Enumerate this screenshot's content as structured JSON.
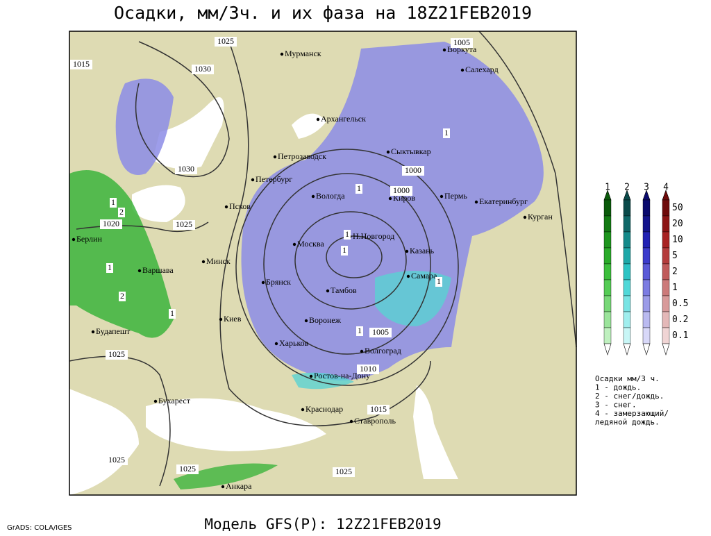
{
  "title": "Осадки, мм/3ч. и их фаза на 18Z21FEB2019",
  "map": {
    "cities": [
      "Мурманск",
      "Воркута",
      "Салехард",
      "Архангельск",
      "Сыктывкар",
      "Петрозаводск",
      "Петербург",
      "Вологда",
      "Киров",
      "Пермь",
      "Екатеринбург",
      "Курган",
      "Псков",
      "Берлин",
      "Н.Новгород",
      "Москва",
      "Казань",
      "Варшава",
      "Минск",
      "Самара",
      "Брянск",
      "Тамбов",
      "Киев",
      "Воронеж",
      "Будапешт",
      "Харьков",
      "Волгоград",
      "Ростов-на-Дону",
      "Бухарест",
      "Краснодар",
      "Ставрополь",
      "Анкара"
    ],
    "isobar_labels": [
      "1025",
      "1015",
      "1030",
      "1005",
      "1030",
      "1000",
      "1000",
      "1020",
      "1025",
      "1005",
      "1025",
      "1010",
      "1015",
      "1025",
      "1025",
      "1025"
    ],
    "phase_marks": [
      "1",
      "1",
      "1",
      "2",
      "1",
      "1",
      "1",
      "2",
      "1",
      "1",
      "1"
    ]
  },
  "legend": {
    "phases": [
      "1",
      "2",
      "3",
      "4"
    ],
    "scale": [
      "50",
      "20",
      "10",
      "5",
      "2",
      "1",
      "0.5",
      "0.2",
      "0.1"
    ],
    "notes": [
      "Осадки мм/3 ч.",
      "1 - дождь.",
      "2 - снег/дождь.",
      "3 - снег.",
      "4 - замерзающий/",
      "ледяной дождь."
    ]
  },
  "footer": {
    "credit": "GrADS: COLA/IGES",
    "model": "Модель GFS(P): 12Z21FEB2019"
  }
}
